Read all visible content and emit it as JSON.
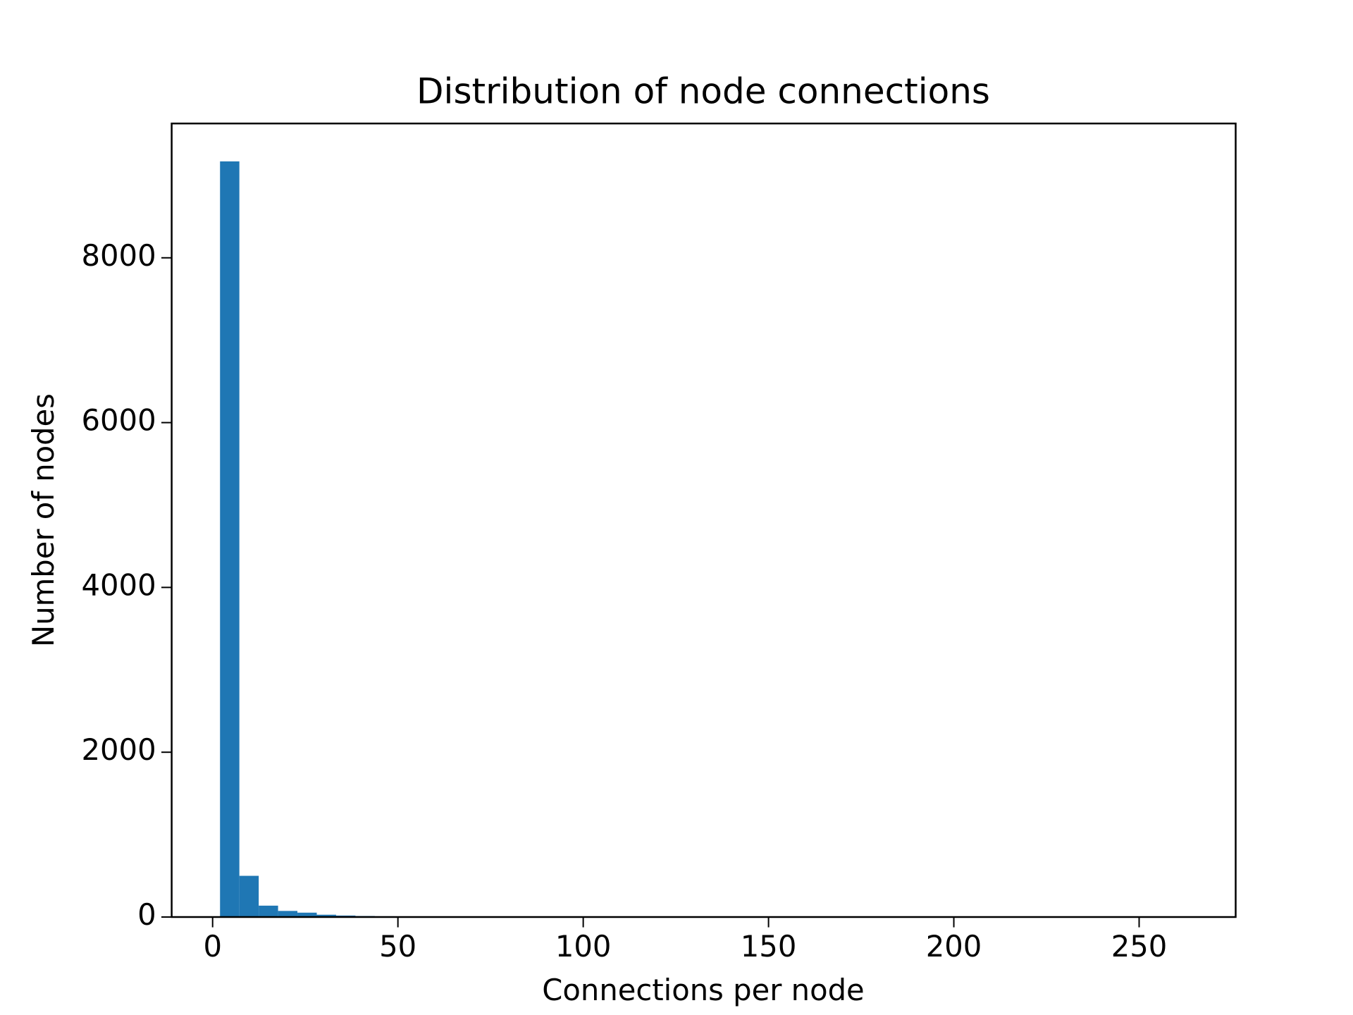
{
  "chart_data": {
    "type": "histogram",
    "title": "Distribution of node connections",
    "x_label": "Connections per node",
    "y_label": "Number of nodes",
    "color": "#1f77b4",
    "bins": [
      2.0,
      7.22,
      12.44,
      17.66,
      22.88,
      28.1,
      33.32,
      38.54,
      43.76,
      48.98,
      54.2,
      59.42,
      64.64,
      69.86,
      75.08,
      80.3,
      85.52,
      90.74,
      95.96,
      101.18,
      106.4,
      111.62,
      116.84,
      122.06,
      127.28,
      132.5,
      137.72,
      142.94,
      148.16,
      153.38,
      158.6,
      163.82,
      169.04,
      174.26,
      179.48,
      184.7,
      189.92,
      195.14,
      200.36,
      205.58,
      210.8,
      216.02,
      221.24,
      226.46,
      231.68,
      236.9,
      242.12,
      247.34,
      252.56,
      257.78,
      263.0
    ],
    "values": [
      9170,
      500,
      138,
      74,
      53,
      28,
      18,
      12,
      9,
      6,
      5,
      4,
      3,
      2,
      2,
      1,
      1,
      1,
      1,
      0,
      1,
      0,
      0,
      1,
      0,
      0,
      0,
      0,
      0,
      0,
      0,
      0,
      0,
      0,
      0,
      0,
      0,
      0,
      0,
      0,
      0,
      0,
      0,
      0,
      0,
      0,
      0,
      0,
      0,
      1
    ],
    "xlim": [
      -11.05,
      276.05
    ],
    "ylim": [
      0,
      9630
    ],
    "xticks": [
      0,
      50,
      100,
      150,
      200,
      250
    ],
    "yticks": [
      0,
      2000,
      4000,
      6000,
      8000
    ]
  }
}
